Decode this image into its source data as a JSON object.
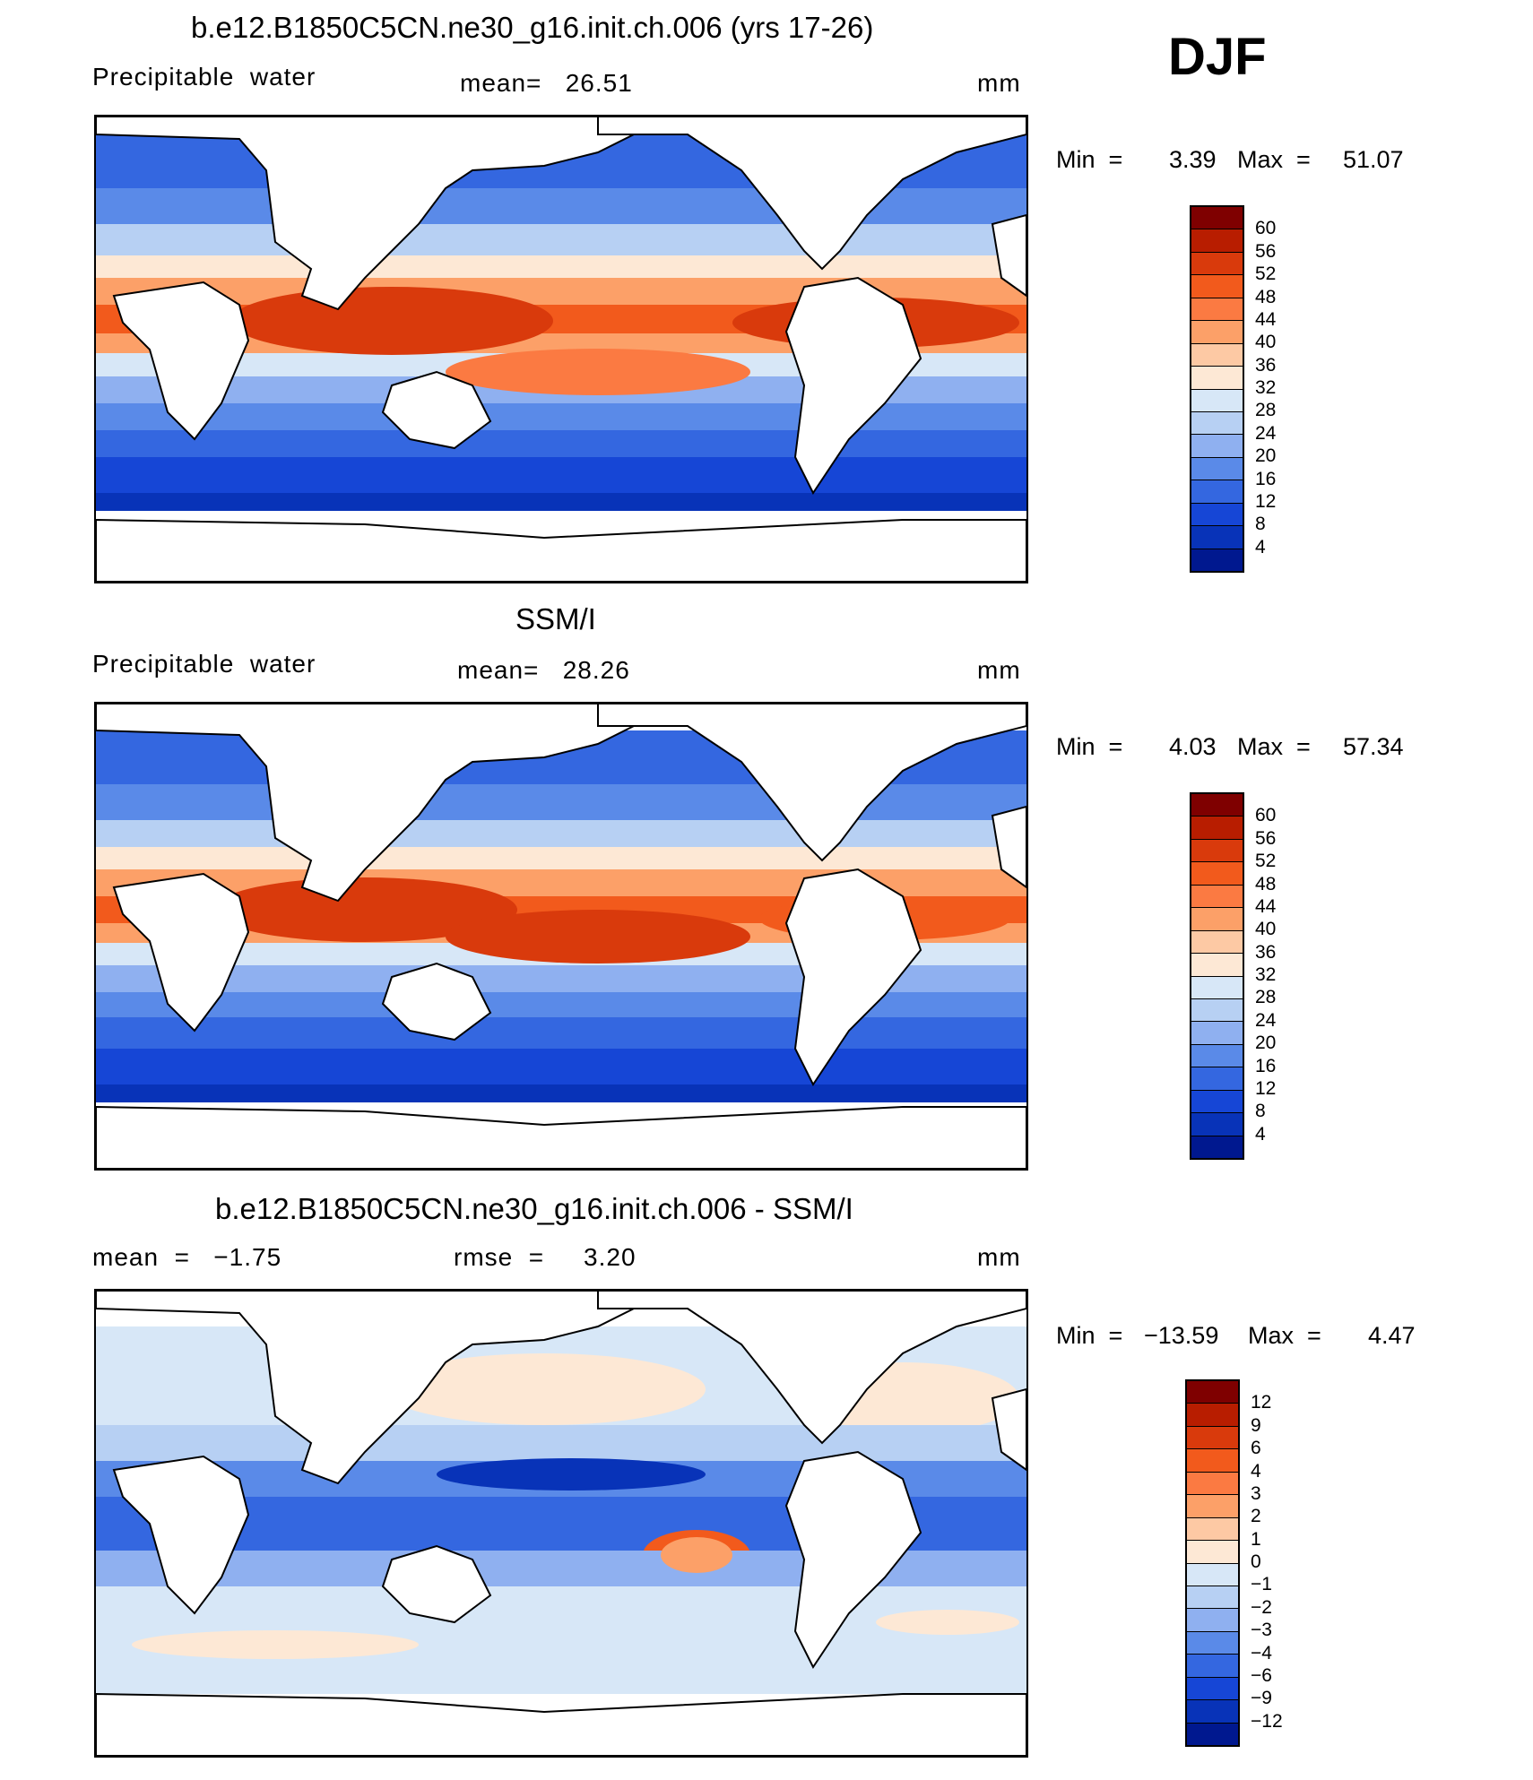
{
  "season": "DJF",
  "units": "mm",
  "scale_main": {
    "labels": [
      "60",
      "56",
      "52",
      "48",
      "44",
      "40",
      "36",
      "32",
      "28",
      "24",
      "20",
      "16",
      "12",
      "8",
      "4"
    ],
    "colors": [
      "#7f0000",
      "#b81d00",
      "#d93a0c",
      "#f25a1c",
      "#fb7a42",
      "#fca068",
      "#fdc9a4",
      "#fde8d5",
      "#d7e7f7",
      "#b7d0f3",
      "#8fb0f0",
      "#5a8ae8",
      "#3467e0",
      "#1646d6",
      "#0833b8",
      "#00188f"
    ]
  },
  "scale_diff": {
    "labels": [
      "12",
      "9",
      "6",
      "4",
      "3",
      "2",
      "1",
      "0",
      "−1",
      "−2",
      "−3",
      "−4",
      "−6",
      "−9",
      "−12"
    ],
    "colors": [
      "#7f0000",
      "#b81d00",
      "#d93a0c",
      "#f25a1c",
      "#fb7a42",
      "#fca068",
      "#fdc9a4",
      "#fde8d5",
      "#d7e7f7",
      "#b7d0f3",
      "#8fb0f0",
      "#5a8ae8",
      "#3467e0",
      "#1646d6",
      "#0833b8",
      "#00188f"
    ]
  },
  "panels": [
    {
      "title": "b.e12.B1850C5CN.ne30_g16.init.ch.006 (yrs 17-26)",
      "left_label": "Precipitable  water",
      "center_label": "mean=   26.51",
      "right_label": "mm",
      "min_label": "Min  =",
      "min_value": "3.39",
      "max_label": "Max  =",
      "max_value": "51.07"
    },
    {
      "title": "SSM/I",
      "left_label": "Precipitable  water",
      "center_label": "mean=   28.26",
      "right_label": "mm",
      "min_label": "Min  =",
      "min_value": "4.03",
      "max_label": "Max  =",
      "max_value": "57.34"
    },
    {
      "title": "b.e12.B1850C5CN.ne30_g16.init.ch.006 - SSM/I",
      "left_label": "mean  =   −1.75",
      "center_label": "rmse  =     3.20",
      "right_label": "mm",
      "min_label": "Min  =",
      "min_value": "−13.59",
      "max_label": "Max  =",
      "max_value": "4.47"
    }
  ]
}
